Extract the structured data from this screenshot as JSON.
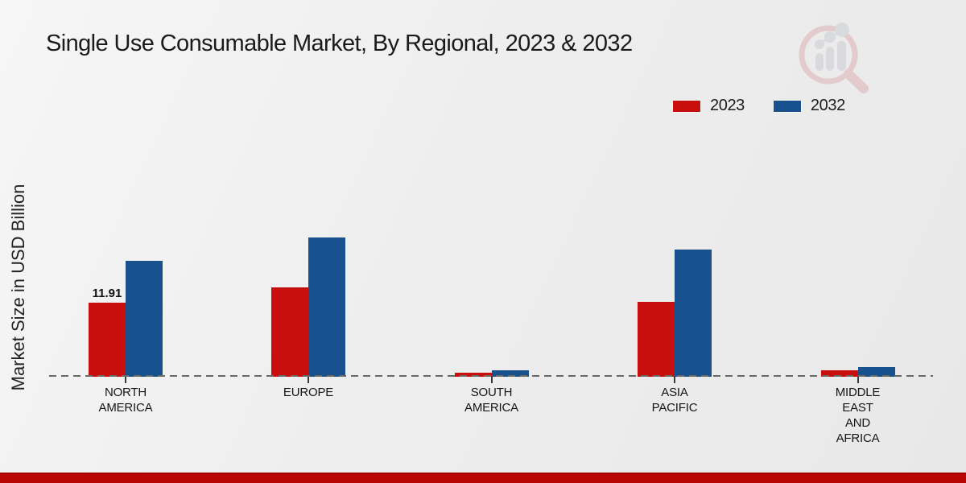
{
  "title": "Single Use Consumable Market, By Regional, 2023 & 2032",
  "y_axis_label": "Market Size in USD Billion",
  "legend": {
    "items": [
      {
        "label": "2023",
        "color": "#c90e0e"
      },
      {
        "label": "2032",
        "color": "#17528e"
      }
    ]
  },
  "colors": {
    "bar_2023": "#c90e0e",
    "bar_2032": "#17528e",
    "footer_band": "#ba0505",
    "baseline_dash": "#686868",
    "text": "#1b1b1b"
  },
  "watermark_icon": "magnifier-bar-chart-logo",
  "chart_data": {
    "type": "bar",
    "title": "Single Use Consumable Market, By Regional, 2023 & 2032",
    "ylabel": "Market Size in USD Billion",
    "xlabel": "",
    "categories": [
      "NORTH AMERICA",
      "EUROPE",
      "SOUTH AMERICA",
      "ASIA PACIFIC",
      "MIDDLE EAST AND AFRICA"
    ],
    "categories_display": [
      "NORTH\nAMERICA",
      "EUROPE",
      "SOUTH\nAMERICA",
      "ASIA\nPACIFIC",
      "MIDDLE\nEAST\nAND\nAFRICA"
    ],
    "series": [
      {
        "name": "2023",
        "color": "#c90e0e",
        "values": [
          11.91,
          14.4,
          0.7,
          12.0,
          1.0
        ]
      },
      {
        "name": "2032",
        "color": "#17528e",
        "values": [
          18.6,
          22.4,
          1.0,
          20.4,
          1.6
        ]
      }
    ],
    "data_labels": [
      {
        "series": "2023",
        "category_index": 0,
        "text": "11.91"
      }
    ],
    "ylim": [
      0,
      24
    ],
    "grid": "dashed zero baseline only",
    "legend_position": "top-right",
    "units": "USD Billion"
  }
}
